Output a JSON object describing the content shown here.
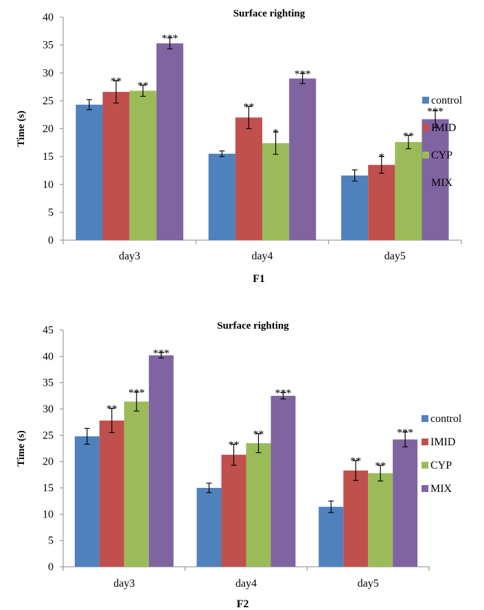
{
  "chart_data": [
    {
      "type": "bar",
      "title": "Surface righting",
      "ylabel": "Time (s)",
      "xlabel": "F1",
      "categories": [
        "day3",
        "day4",
        "day5"
      ],
      "ylim": [
        0,
        40
      ],
      "yticks": [
        0,
        5,
        10,
        15,
        20,
        25,
        30,
        35,
        40
      ],
      "grid": false,
      "legend_position": "right",
      "series": [
        {
          "name": "control",
          "color": "#4F81BD",
          "values": [
            24.3,
            15.5,
            11.6
          ],
          "errors": [
            0.9,
            0.5,
            1.0
          ],
          "sig": [
            "",
            "",
            ""
          ]
        },
        {
          "name": "IMID",
          "color": "#C0504D",
          "values": [
            26.6,
            22.0,
            13.5
          ],
          "errors": [
            2.0,
            2.0,
            1.5
          ],
          "sig": [
            "**",
            "**",
            "*"
          ]
        },
        {
          "name": "CYP",
          "color": "#9BBB59",
          "values": [
            26.8,
            17.4,
            17.6
          ],
          "errors": [
            1.0,
            2.0,
            1.2
          ],
          "sig": [
            "**",
            "*",
            "**"
          ]
        },
        {
          "name": "MIX",
          "color": "#8064A2",
          "values": [
            35.3,
            29.0,
            21.7
          ],
          "errors": [
            1.0,
            0.9,
            1.5
          ],
          "sig": [
            "***",
            "***",
            "***"
          ]
        }
      ]
    },
    {
      "type": "bar",
      "title": "Surface righting",
      "ylabel": "Time (s)",
      "xlabel": "F2",
      "categories": [
        "day3",
        "day4",
        "day5"
      ],
      "ylim": [
        0,
        45
      ],
      "yticks": [
        0,
        5,
        10,
        15,
        20,
        25,
        30,
        35,
        40,
        45
      ],
      "grid": false,
      "legend_position": "right",
      "series": [
        {
          "name": "control",
          "color": "#4F81BD",
          "values": [
            24.8,
            15.0,
            11.4
          ],
          "errors": [
            1.5,
            0.9,
            1.1
          ],
          "sig": [
            "",
            "",
            ""
          ]
        },
        {
          "name": "IMID",
          "color": "#C0504D",
          "values": [
            27.8,
            21.3,
            18.3
          ],
          "errors": [
            2.3,
            2.0,
            1.9
          ],
          "sig": [
            "**",
            "**",
            "**"
          ]
        },
        {
          "name": "CYP",
          "color": "#9BBB59",
          "values": [
            31.4,
            23.5,
            17.8
          ],
          "errors": [
            1.8,
            1.8,
            1.5
          ],
          "sig": [
            "***",
            "**",
            "**"
          ]
        },
        {
          "name": "MIX",
          "color": "#8064A2",
          "values": [
            40.2,
            32.5,
            24.2
          ],
          "errors": [
            0.5,
            0.6,
            1.4
          ],
          "sig": [
            "***",
            "***",
            "***"
          ]
        }
      ]
    }
  ]
}
